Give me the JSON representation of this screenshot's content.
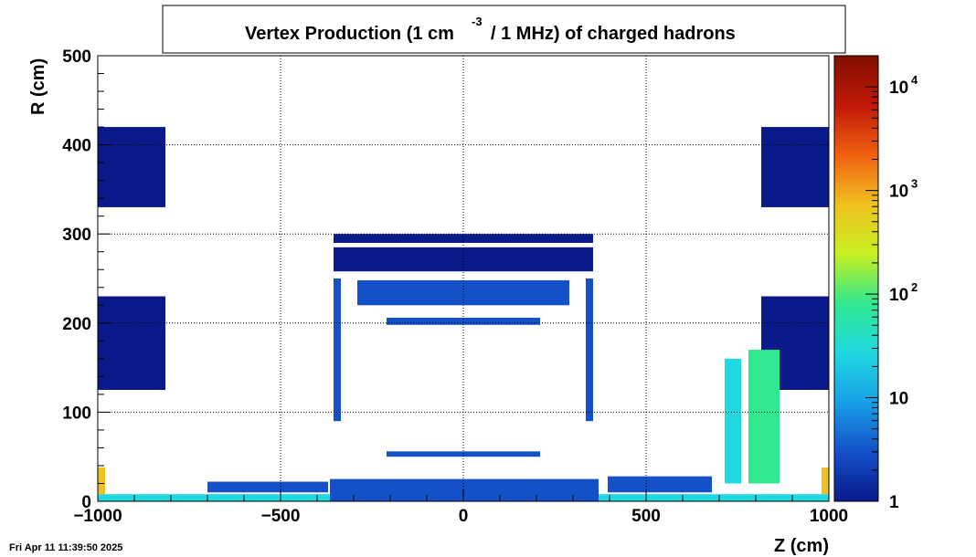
{
  "chart_data": {
    "type": "heatmap",
    "title_main": "Vertex Production (1 cm",
    "title_sup": "-3",
    "title_rest": "/ 1 MHz) of   charged hadrons",
    "xlabel": "Z (cm)",
    "ylabel": "R (cm)",
    "xlim": [
      -1000,
      1000
    ],
    "ylim": [
      0,
      500
    ],
    "x_ticks": [
      {
        "v": -1000,
        "label": "−1000"
      },
      {
        "v": -500,
        "label": "−500"
      },
      {
        "v": 0,
        "label": "0"
      },
      {
        "v": 500,
        "label": "500"
      },
      {
        "v": 1000,
        "label": "1000"
      }
    ],
    "y_ticks": [
      {
        "v": 0,
        "label": "0"
      },
      {
        "v": 100,
        "label": "100"
      },
      {
        "v": 200,
        "label": "200"
      },
      {
        "v": 300,
        "label": "300"
      },
      {
        "v": 400,
        "label": "400"
      },
      {
        "v": 500,
        "label": "500"
      }
    ],
    "z_scale": "log",
    "zlim": [
      1,
      20000
    ],
    "z_ticks": [
      {
        "v": 1,
        "base": "1",
        "exp": ""
      },
      {
        "v": 10,
        "base": "10",
        "exp": ""
      },
      {
        "v": 100,
        "base": "10",
        "exp": "2"
      },
      {
        "v": 1000,
        "base": "10",
        "exp": "3"
      },
      {
        "v": 10000,
        "base": "10",
        "exp": "4"
      }
    ],
    "grid": true,
    "colormap": [
      "#0a1a8a",
      "#1450c8",
      "#18a0e8",
      "#20d8e0",
      "#30e890",
      "#c8f020",
      "#f0c020",
      "#f06010",
      "#c01808",
      "#801000"
    ],
    "regions": [
      {
        "z": [
          -1000,
          -815
        ],
        "r": [
          330,
          420
        ],
        "level": 1.4
      },
      {
        "z": [
          -1000,
          -815
        ],
        "r": [
          125,
          230
        ],
        "level": 1.6
      },
      {
        "z": [
          815,
          1000
        ],
        "r": [
          330,
          420
        ],
        "level": 1.4
      },
      {
        "z": [
          815,
          1000
        ],
        "r": [
          125,
          230
        ],
        "level": 1.6
      },
      {
        "z": [
          -1000,
          1000
        ],
        "r": [
          0,
          8
        ],
        "level": 30
      },
      {
        "z": [
          -1000,
          -980
        ],
        "r": [
          8,
          38
        ],
        "level": 800
      },
      {
        "z": [
          980,
          1000
        ],
        "r": [
          8,
          38
        ],
        "level": 800
      },
      {
        "z": [
          -355,
          355
        ],
        "r": [
          290,
          300
        ],
        "level": 2
      },
      {
        "z": [
          -355,
          355
        ],
        "r": [
          258,
          285
        ],
        "level": 2.5
      },
      {
        "z": [
          -290,
          290
        ],
        "r": [
          220,
          248
        ],
        "level": 3
      },
      {
        "z": [
          -355,
          -335
        ],
        "r": [
          90,
          250
        ],
        "level": 4
      },
      {
        "z": [
          335,
          355
        ],
        "r": [
          90,
          250
        ],
        "level": 5
      },
      {
        "z": [
          -210,
          210
        ],
        "r": [
          50,
          56
        ],
        "level": 3
      },
      {
        "z": [
          -210,
          210
        ],
        "r": [
          198,
          206
        ],
        "level": 3
      },
      {
        "z": [
          -700,
          -370
        ],
        "r": [
          10,
          22
        ],
        "level": 4
      },
      {
        "z": [
          395,
          680
        ],
        "r": [
          10,
          28
        ],
        "level": 4
      },
      {
        "z": [
          715,
          760
        ],
        "r": [
          20,
          160
        ],
        "level": 40
      },
      {
        "z": [
          780,
          865
        ],
        "r": [
          20,
          170
        ],
        "level": 80
      },
      {
        "z": [
          -365,
          370
        ],
        "r": [
          0,
          25
        ],
        "level": 6
      }
    ]
  },
  "footer": {
    "date": "Fri Apr 11 11:39:50 2025"
  }
}
